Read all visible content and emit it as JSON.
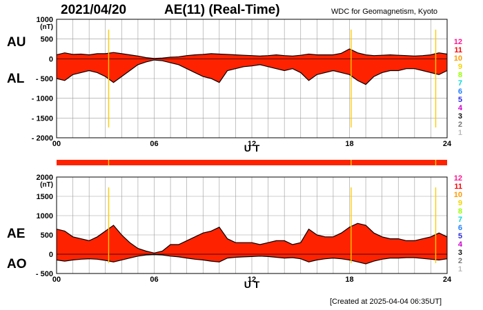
{
  "header": {
    "date": "2021/04/20",
    "title": "AE(11) (Real-Time)",
    "credit": "WDC for Geomagnetism, Kyoto"
  },
  "footer": {
    "created": "[Created at 2025-04-04 06:35UT]"
  },
  "side_labels": {
    "au": "AU",
    "al": "AL",
    "ae": "AE",
    "ao": "AO"
  },
  "legend": {
    "items": [
      {
        "label": "12",
        "color": "#ff1493"
      },
      {
        "label": "11",
        "color": "#ff0000"
      },
      {
        "label": "10",
        "color": "#ff9900"
      },
      {
        "label": "9",
        "color": "#f2d400"
      },
      {
        "label": "8",
        "color": "#99ff00"
      },
      {
        "label": "7",
        "color": "#00d8d8"
      },
      {
        "label": "6",
        "color": "#1f7fff"
      },
      {
        "label": "5",
        "color": "#2a2add"
      },
      {
        "label": "4",
        "color": "#cc00cc"
      },
      {
        "label": "3",
        "color": "#111111"
      },
      {
        "label": "2",
        "color": "#777777"
      },
      {
        "label": "1",
        "color": "#bbbbbb"
      }
    ]
  },
  "colors": {
    "fill": "#ff2200",
    "outline": "#000000",
    "grid": "#999999",
    "marker": "#ffcc00"
  },
  "chart_data": [
    {
      "type": "area",
      "title": "AE(11) (Real-Time)",
      "xlabel": "U T",
      "ylabel": "(nT)",
      "xlim": [
        0,
        24
      ],
      "ylim": [
        -2000,
        1000
      ],
      "xticks": [
        "00",
        "06",
        "12",
        "18",
        "24"
      ],
      "yticks": [
        "1000",
        "500",
        "0",
        "- 500",
        "- 1000",
        "- 1500",
        "- 2000"
      ],
      "grid": true,
      "marker_hours": [
        3.2,
        18.1,
        23.3
      ],
      "series": [
        {
          "name": "AU",
          "x": [
            0,
            0.5,
            1,
            1.5,
            2,
            2.5,
            3,
            3.5,
            4,
            4.5,
            5,
            5.5,
            6,
            6.5,
            7,
            7.5,
            8,
            8.5,
            9,
            9.5,
            10,
            10.5,
            11,
            11.5,
            12,
            12.5,
            13,
            13.5,
            14,
            14.5,
            15,
            15.5,
            16,
            16.5,
            17,
            17.5,
            18,
            18.5,
            19,
            19.5,
            20,
            20.5,
            21,
            21.5,
            22,
            22.5,
            23,
            23.5,
            24
          ],
          "values": [
            100,
            150,
            110,
            120,
            100,
            130,
            130,
            160,
            130,
            100,
            70,
            30,
            10,
            20,
            40,
            50,
            80,
            100,
            110,
            130,
            120,
            110,
            100,
            90,
            80,
            70,
            80,
            100,
            80,
            70,
            90,
            120,
            100,
            100,
            100,
            140,
            250,
            150,
            100,
            80,
            90,
            100,
            90,
            80,
            70,
            80,
            100,
            150,
            120
          ]
        },
        {
          "name": "AL",
          "x": [
            0,
            0.5,
            1,
            1.5,
            2,
            2.5,
            3,
            3.5,
            4,
            4.5,
            5,
            5.5,
            6,
            6.5,
            7,
            7.5,
            8,
            8.5,
            9,
            9.5,
            10,
            10.5,
            11,
            11.5,
            12,
            12.5,
            13,
            13.5,
            14,
            14.5,
            15,
            15.5,
            16,
            16.5,
            17,
            17.5,
            18,
            18.5,
            19,
            19.5,
            20,
            20.5,
            21,
            21.5,
            22,
            22.5,
            23,
            23.5,
            24
          ],
          "values": [
            -500,
            -550,
            -400,
            -350,
            -300,
            -350,
            -450,
            -600,
            -450,
            -300,
            -150,
            -80,
            -30,
            -50,
            -100,
            -150,
            -250,
            -350,
            -450,
            -500,
            -600,
            -300,
            -250,
            -200,
            -180,
            -150,
            -200,
            -250,
            -300,
            -250,
            -350,
            -550,
            -400,
            -350,
            -300,
            -350,
            -400,
            -550,
            -650,
            -450,
            -350,
            -300,
            -300,
            -250,
            -250,
            -300,
            -350,
            -400,
            -300
          ]
        }
      ]
    },
    {
      "type": "area",
      "xlabel": "U T",
      "ylabel": "(nT)",
      "xlim": [
        0,
        24
      ],
      "ylim": [
        -500,
        2000
      ],
      "xticks": [
        "00",
        "06",
        "12",
        "18",
        "24"
      ],
      "yticks": [
        "2000",
        "1500",
        "1000",
        "500",
        "0",
        "- 500"
      ],
      "grid": true,
      "marker_hours": [
        3.2,
        18.1,
        23.3
      ],
      "series": [
        {
          "name": "AE",
          "x": [
            0,
            0.5,
            1,
            1.5,
            2,
            2.5,
            3,
            3.5,
            4,
            4.5,
            5,
            5.5,
            6,
            6.5,
            7,
            7.5,
            8,
            8.5,
            9,
            9.5,
            10,
            10.5,
            11,
            11.5,
            12,
            12.5,
            13,
            13.5,
            14,
            14.5,
            15,
            15.5,
            16,
            16.5,
            17,
            17.5,
            18,
            18.5,
            19,
            19.5,
            20,
            20.5,
            21,
            21.5,
            22,
            22.5,
            23,
            23.5,
            24
          ],
          "values": [
            650,
            600,
            450,
            400,
            350,
            450,
            600,
            750,
            500,
            300,
            150,
            80,
            30,
            80,
            250,
            250,
            350,
            450,
            550,
            600,
            700,
            400,
            300,
            300,
            300,
            250,
            300,
            350,
            350,
            250,
            300,
            650,
            500,
            450,
            450,
            550,
            700,
            800,
            750,
            550,
            450,
            400,
            400,
            350,
            350,
            400,
            450,
            550,
            450
          ]
        },
        {
          "name": "AO",
          "x": [
            0,
            0.5,
            1,
            1.5,
            2,
            2.5,
            3,
            3.5,
            4,
            4.5,
            5,
            5.5,
            6,
            6.5,
            7,
            7.5,
            8,
            8.5,
            9,
            9.5,
            10,
            10.5,
            11,
            11.5,
            12,
            12.5,
            13,
            13.5,
            14,
            14.5,
            15,
            15.5,
            16,
            16.5,
            17,
            17.5,
            18,
            18.5,
            19,
            19.5,
            20,
            20.5,
            21,
            21.5,
            22,
            22.5,
            23,
            23.5,
            24
          ],
          "values": [
            -150,
            -180,
            -150,
            -130,
            -120,
            -130,
            -160,
            -200,
            -150,
            -100,
            -50,
            -20,
            -10,
            -20,
            -50,
            -70,
            -100,
            -130,
            -150,
            -180,
            -200,
            -100,
            -80,
            -70,
            -60,
            -50,
            -60,
            -80,
            -100,
            -90,
            -120,
            -200,
            -150,
            -120,
            -100,
            -120,
            -150,
            -200,
            -250,
            -180,
            -130,
            -100,
            -100,
            -90,
            -90,
            -110,
            -130,
            -150,
            -120
          ]
        }
      ]
    }
  ]
}
